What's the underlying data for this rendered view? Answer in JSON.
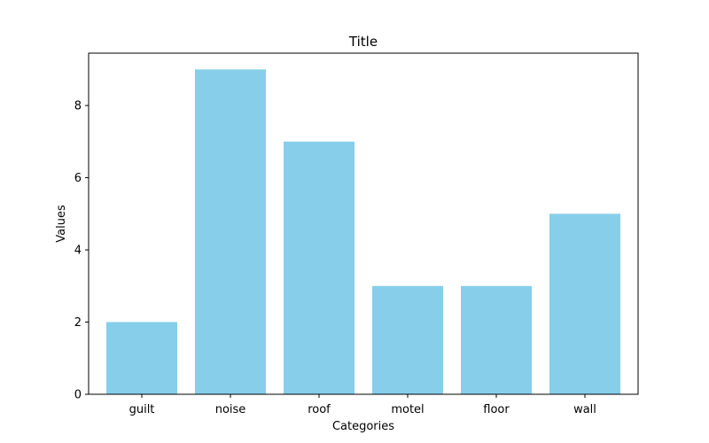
{
  "chart_data": {
    "type": "bar",
    "title": "Title",
    "xlabel": "Categories",
    "ylabel": "Values",
    "categories": [
      "guilt",
      "noise",
      "roof",
      "motel",
      "floor",
      "wall"
    ],
    "values": [
      2,
      9,
      7,
      3,
      3,
      5
    ],
    "ylim": [
      0,
      9.45
    ],
    "yticks": [
      0,
      2,
      4,
      6,
      8
    ],
    "grid": false,
    "bar_color": "#87ceeb"
  }
}
